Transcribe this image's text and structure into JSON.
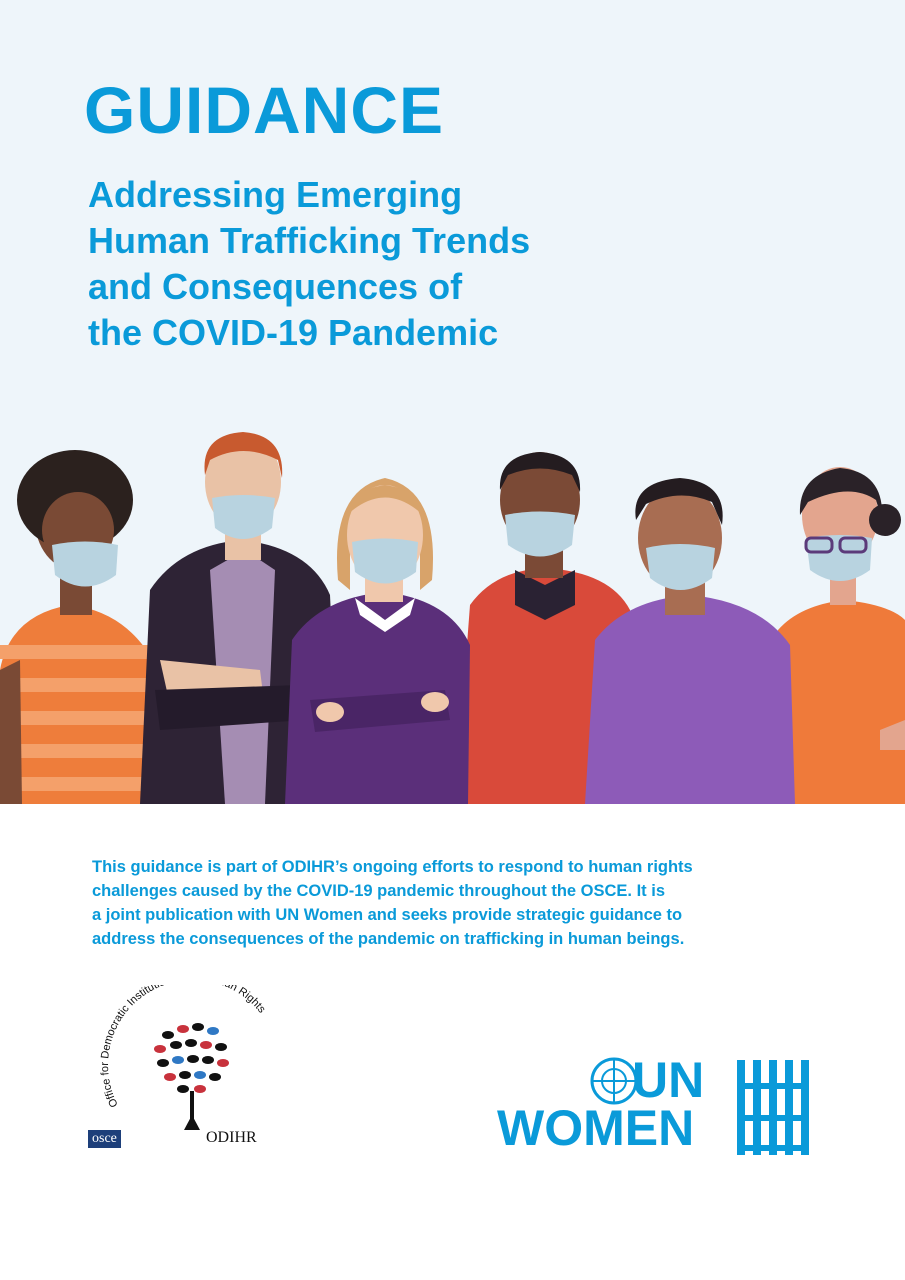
{
  "header": {
    "doc_type": "GUIDANCE",
    "subtitle_lines": [
      "Addressing Emerging",
      "Human Trafficking Trends",
      "and Consequences of",
      "the COVID-19 Pandemic"
    ]
  },
  "description_lines": [
    "This guidance is part of ODIHR’s ongoing efforts to respond to human rights",
    "challenges caused by the COVID-19 pandemic throughout the OSCE. It is",
    "a joint publication with UN Women and seeks provide strategic guidance to",
    "address the consequences of the pandemic on trafficking in human beings."
  ],
  "logos": {
    "odihr": {
      "arc_text": "Office for Democratic Institutions and Human Rights",
      "osce_label": "osce",
      "odihr_label": "ODIHR"
    },
    "un_women": {
      "line1": "UN",
      "line2": "WOMEN"
    }
  },
  "colors": {
    "brand_blue": "#0a9ad9",
    "background": "#eef5fa"
  },
  "illustration": {
    "subject": "group of six people wearing face masks"
  }
}
